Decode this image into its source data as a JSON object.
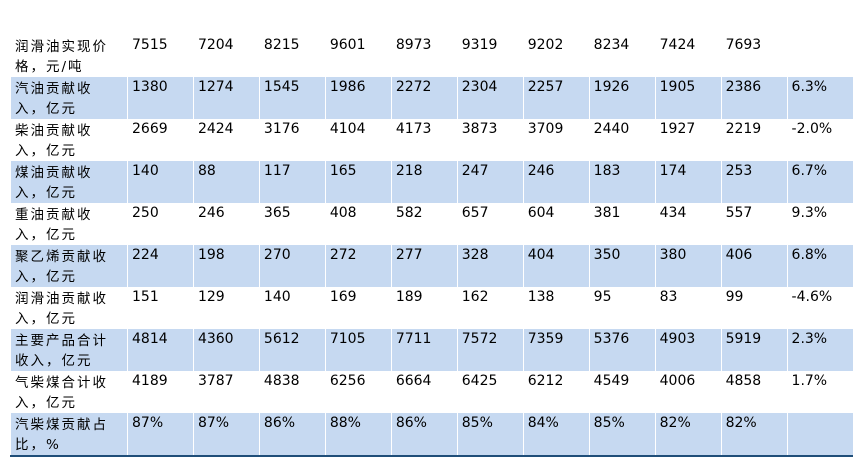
{
  "table": {
    "rows": [
      [
        "润滑油实现价格，元/吨",
        7515,
        7204,
        8215,
        9601,
        8973,
        9319,
        9202,
        8234,
        7424,
        7693
      ],
      [
        "汽油贡献收入，亿元",
        1380,
        1274,
        1545,
        1986,
        2272,
        2304,
        2257,
        1926,
        1905,
        2386,
        "6.3%"
      ],
      [
        "柴油贡献收入，亿元",
        2669,
        2424,
        3176,
        4104,
        4173,
        3873,
        3709,
        2440,
        1927,
        2219,
        "-2.0%"
      ],
      [
        "煤油贡献收入，亿元",
        140,
        88,
        117,
        165,
        218,
        247,
        246,
        183,
        174,
        253,
        "6.7%"
      ],
      [
        "重油贡献收入，亿元",
        250,
        246,
        365,
        408,
        582,
        657,
        604,
        381,
        434,
        557,
        "9.3%"
      ],
      [
        "聚乙烯贡献收入，亿元",
        224,
        198,
        270,
        272,
        277,
        328,
        404,
        350,
        380,
        406,
        "6.8%"
      ],
      [
        "润滑油贡献收入，亿元",
        151,
        129,
        140,
        169,
        189,
        162,
        138,
        95,
        83,
        99,
        "-4.6%"
      ],
      [
        "主要产品合计收入，亿元",
        4814,
        4360,
        5612,
        7105,
        7711,
        7572,
        7359,
        5376,
        4903,
        5919,
        "2.3%"
      ],
      [
        "气柴煤合计收入，亿元",
        4189,
        3787,
        4838,
        6256,
        6664,
        6425,
        6212,
        4549,
        4006,
        4858,
        "1.7%"
      ],
      [
        "汽柴煤贡献占比，%",
        "87%",
        "87%",
        "86%",
        "88%",
        "86%",
        "85%",
        "84%",
        "85%",
        "82%",
        "82%"
      ]
    ]
  }
}
